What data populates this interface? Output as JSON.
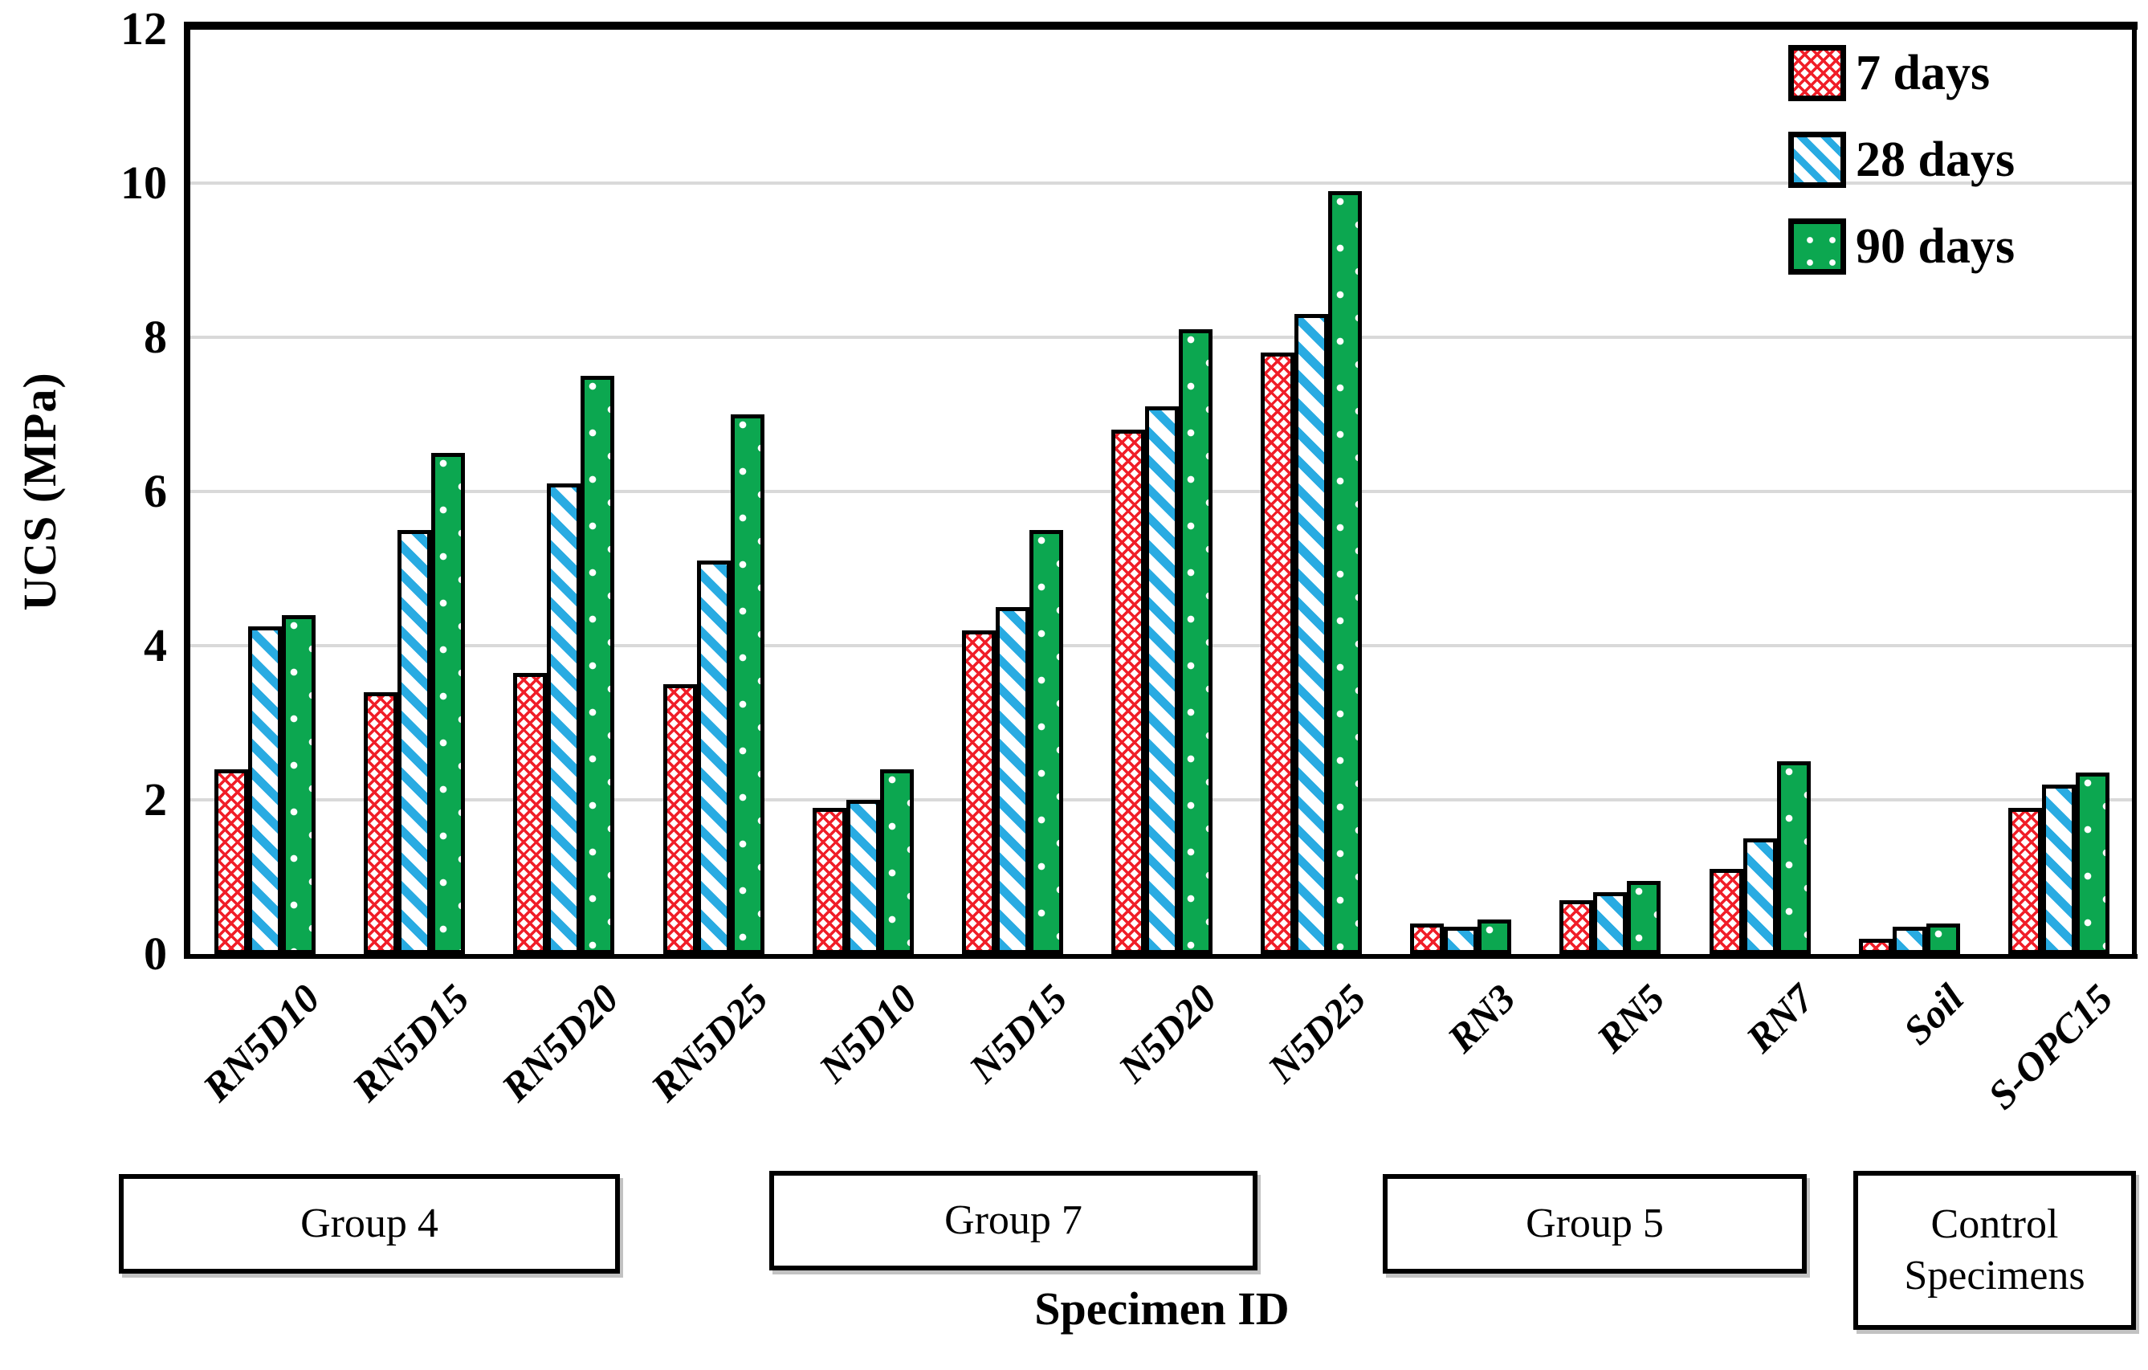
{
  "chart_data": {
    "type": "bar",
    "title": "",
    "ylabel": "UCS (MPa)",
    "xlabel": "Specimen ID",
    "ylim": [
      0,
      12
    ],
    "yticks": [
      0,
      2,
      4,
      6,
      8,
      10,
      12
    ],
    "grid": true,
    "legend_position": "top-right-inside",
    "categories": [
      "RN5D10",
      "RN5D15",
      "RN5D20",
      "RN5D25",
      "N5D10",
      "N5D15",
      "N5D20",
      "N5D25",
      "RN3",
      "RN5",
      "RN7",
      "Soil",
      "S-OPC15"
    ],
    "series": [
      {
        "name": "7 days",
        "pattern": "red-crosshatch",
        "color": "#F01E28",
        "values": [
          2.4,
          3.4,
          3.65,
          3.5,
          1.9,
          4.2,
          6.8,
          7.8,
          0.4,
          0.7,
          1.1,
          0.2,
          1.9
        ]
      },
      {
        "name": "28 days",
        "pattern": "blue-diagonal-stripes",
        "color": "#29ABE2",
        "values": [
          4.25,
          5.5,
          6.1,
          5.1,
          2.0,
          4.5,
          7.1,
          8.3,
          0.35,
          0.8,
          1.5,
          0.35,
          2.2
        ]
      },
      {
        "name": "90 days",
        "pattern": "green-white-dots",
        "color": "#0CA750",
        "values": [
          4.4,
          6.5,
          7.5,
          7.0,
          2.4,
          5.5,
          8.1,
          9.9,
          0.45,
          0.95,
          2.5,
          0.4,
          2.35
        ]
      }
    ],
    "group_labels": [
      {
        "label": "Group 4",
        "span": [
          0,
          3
        ]
      },
      {
        "label": "Group 7",
        "span": [
          4,
          7
        ]
      },
      {
        "label": "Group 5",
        "span": [
          8,
          10
        ]
      },
      {
        "label": "Control Specimens",
        "span": [
          11,
          12
        ]
      }
    ],
    "axis_color": "#000000",
    "gridline_color": "#D9D9D9"
  }
}
